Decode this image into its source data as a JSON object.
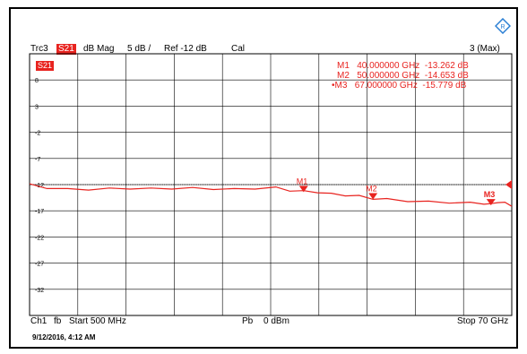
{
  "header": {
    "trace": "Trc3",
    "param": "S21",
    "format": "dB Mag",
    "scale": "5 dB /",
    "ref": "Ref -12 dB",
    "cal": "Cal",
    "max": "3 (Max)"
  },
  "plot": {
    "s21_badge": "S21",
    "y_labels": [
      "8",
      "3",
      "-2",
      "-7",
      "-12",
      "-17",
      "-22",
      "-27",
      "-32"
    ],
    "markers": [
      {
        "label": "M1",
        "freq": "40.000000 GHz",
        "value": "-13.262 dB",
        "prefix": ""
      },
      {
        "label": "M2",
        "freq": "50.000000 GHz",
        "value": "-14.653 dB",
        "prefix": ""
      },
      {
        "label": "M3",
        "freq": "67.000000 GHz",
        "value": "-15.779 dB",
        "prefix": "•"
      }
    ]
  },
  "footer": {
    "channel": "Ch1",
    "fb": "fb",
    "start": "Start 500 MHz",
    "pb": "Pb",
    "power": "0 dBm",
    "stop": "Stop 70 GHz"
  },
  "timestamp": "9/12/2016, 4:12 AM",
  "colors": {
    "trace": "#e8231f",
    "grid": "#000000"
  },
  "chart_data": {
    "type": "line",
    "title": "",
    "xlabel": "",
    "ylabel": "",
    "xlim": [
      0.5,
      70
    ],
    "ylim": [
      -37,
      13
    ],
    "reference_level": -12,
    "grid": true,
    "series": [
      {
        "name": "S21",
        "x": [
          0.5,
          3,
          6,
          9,
          12,
          15,
          18,
          21,
          24,
          27,
          30,
          33,
          36,
          38,
          40,
          42,
          44,
          46,
          48,
          50,
          52,
          55,
          58,
          61,
          64,
          66,
          67,
          68,
          69,
          70
        ],
        "y": [
          -12.0,
          -12.6,
          -12.9,
          -12.9,
          -12.8,
          -12.7,
          -12.8,
          -12.7,
          -12.7,
          -12.8,
          -12.9,
          -12.7,
          -12.6,
          -13.1,
          -13.3,
          -13.4,
          -13.8,
          -14.0,
          -14.2,
          -14.65,
          -14.8,
          -15.1,
          -15.3,
          -15.4,
          -15.5,
          -15.6,
          -15.78,
          -15.3,
          -15.5,
          -16.0
        ]
      }
    ],
    "markers": [
      {
        "label": "M1",
        "x": 40,
        "y": -13.262
      },
      {
        "label": "M2",
        "x": 50,
        "y": -14.653
      },
      {
        "label": "M3",
        "x": 67,
        "y": -15.779
      }
    ]
  }
}
